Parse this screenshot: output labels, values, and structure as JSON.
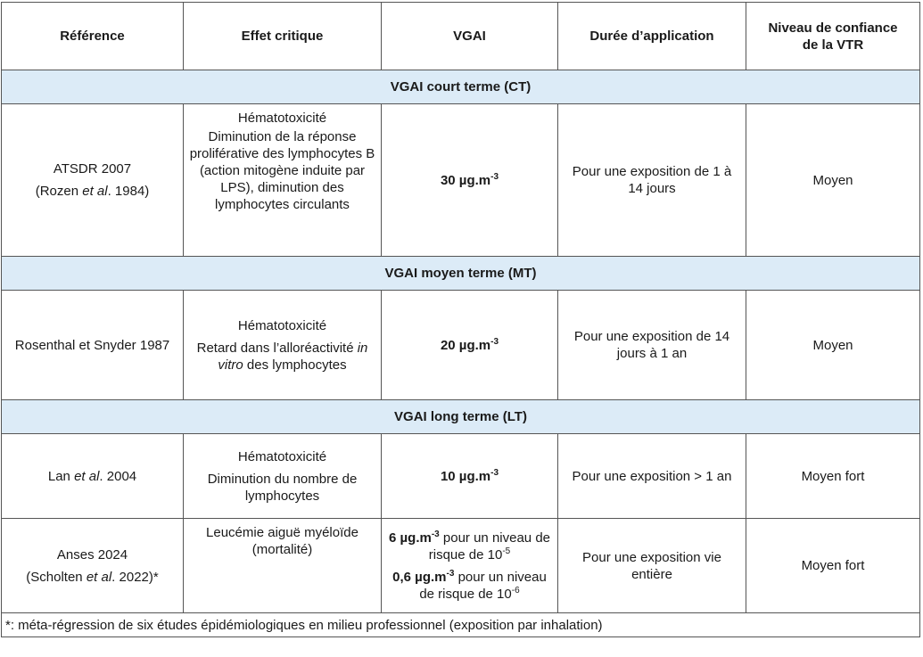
{
  "headers": {
    "reference": "Référence",
    "effet": "Effet critique",
    "vgai": "VGAI",
    "duree": "Durée d’application",
    "confiance_line1": "Niveau de confiance",
    "confiance_line2": "de la VTR"
  },
  "sections": {
    "ct": "VGAI court terme (CT)",
    "mt": "VGAI moyen terme (MT)",
    "lt": "VGAI long terme (LT)"
  },
  "rows": {
    "ct": {
      "ref_line1": "ATSDR 2007",
      "ref_line2_pre": "(Rozen ",
      "ref_line2_em": "et al",
      "ref_line2_post": ". 1984)",
      "effet_title": "Hématotoxicité",
      "effet_desc": "Diminution de la réponse proliférative des lymphocytes B (action mitogène induite par LPS), diminution des lymphocytes circulants",
      "vgai_value": "30 µg.m",
      "vgai_exp": "-3",
      "duree": "Pour une exposition de 1 à 14 jours",
      "confiance": "Moyen"
    },
    "mt": {
      "ref": "Rosenthal et Snyder 1987",
      "effet_title": "Hématotoxicité",
      "effet_desc_pre": "Retard dans l’alloréactivité ",
      "effet_desc_em": "in vitro",
      "effet_desc_post": " des lymphocytes",
      "vgai_value": "20 µg.m",
      "vgai_exp": "-3",
      "duree": "Pour une exposition de 14 jours à 1 an",
      "confiance": "Moyen"
    },
    "lt1": {
      "ref_pre": "Lan ",
      "ref_em": "et al",
      "ref_post": ". 2004",
      "effet_title": "Hématotoxicité",
      "effet_desc": "Diminution du nombre de lymphocytes",
      "vgai_value": "10 µg.m",
      "vgai_exp": "-3",
      "duree": "Pour une exposition > 1 an",
      "confiance": "Moyen fort"
    },
    "lt2": {
      "ref_line1": "Anses 2024",
      "ref_line2_pre": "(Scholten ",
      "ref_line2_em": "et al",
      "ref_line2_post": ". 2022)*",
      "effet": "Leucémie aiguë myéloïde (mortalité)",
      "vgai1_value": "6 µg.m",
      "vgai1_exp": "-3",
      "vgai1_text": " pour un niveau de risque de 10",
      "vgai1_risk_exp": "-5",
      "vgai2_value": "0,6 µg.m",
      "vgai2_exp": "-3",
      "vgai2_text": " pour un niveau de risque de 10",
      "vgai2_risk_exp": "-6",
      "duree": "Pour une exposition vie entière",
      "confiance": "Moyen fort"
    }
  },
  "footnote": "*: méta-régression de six études épidémiologiques en milieu professionnel (exposition par inhalation)"
}
